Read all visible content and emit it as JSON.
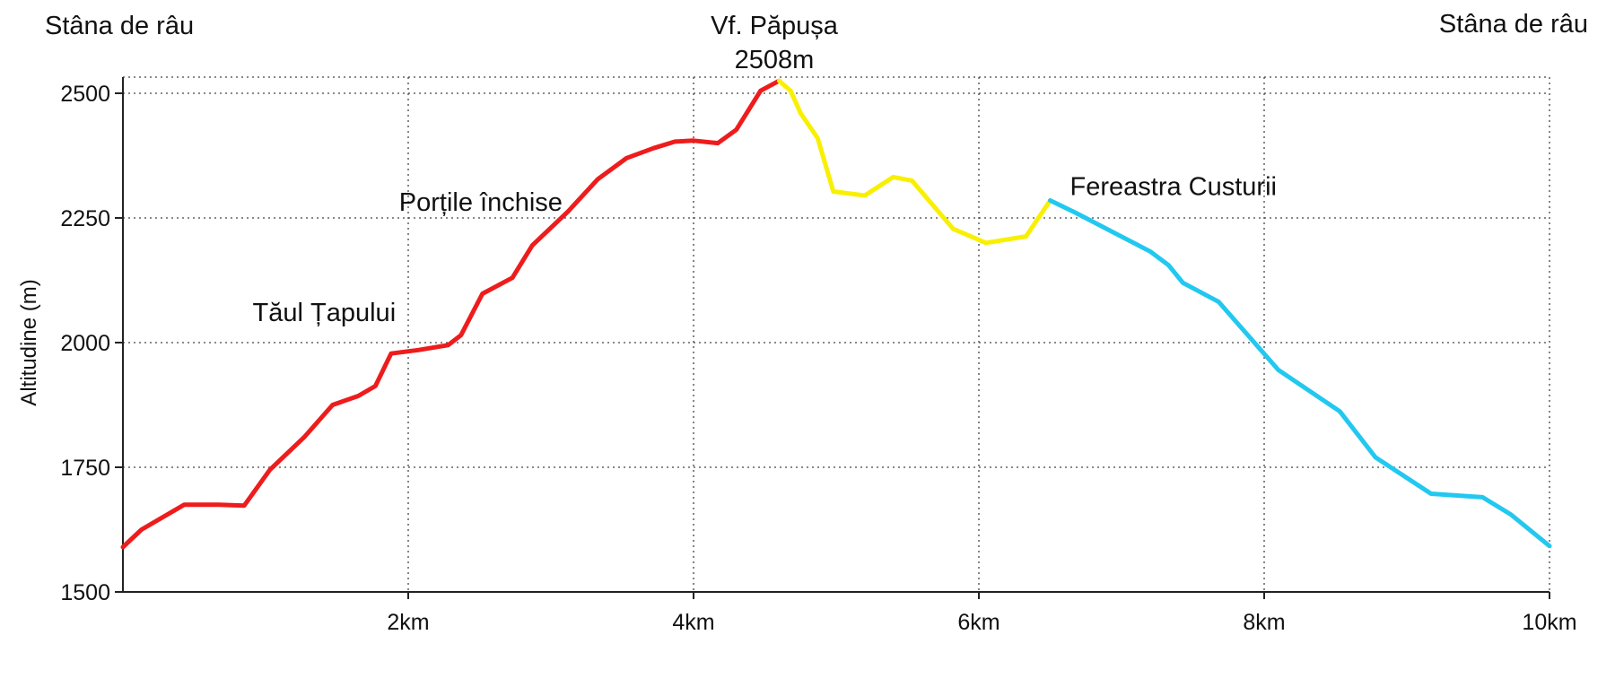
{
  "chart_data": {
    "type": "line",
    "title": "",
    "xlabel": "",
    "ylabel": "Altitudine (m)",
    "xlim": [
      0,
      10
    ],
    "ylim": [
      1500,
      2550
    ],
    "x_unit": "km",
    "x_ticks": [
      2,
      4,
      6,
      8,
      10
    ],
    "x_tick_labels": [
      "2km",
      "4km",
      "6km",
      "8km",
      "10km"
    ],
    "y_ticks": [
      1500,
      1750,
      2000,
      2250,
      2500
    ],
    "y_tick_labels": [
      "1500",
      "1750",
      "2000",
      "2250",
      "2500"
    ],
    "grid": true,
    "top_labels": {
      "start": "Stâna de râu",
      "peak_name": "Vf. Păpușa",
      "peak_alt": "2508m",
      "end": "Stâna de râu"
    },
    "annotations": [
      {
        "text": "Tăul Țapului",
        "x": 1.85,
        "y": 1980
      },
      {
        "text": "Porțile închise",
        "x": 3.05,
        "y": 2250
      },
      {
        "text": "Fereastra Custurii",
        "x": 6.5,
        "y": 2285
      }
    ],
    "series": [
      {
        "color": "#ee1c1c",
        "x": [
          0,
          0.13,
          0.43,
          0.67,
          0.85,
          1.03,
          1.27,
          1.47,
          1.65,
          1.77,
          1.88,
          2.07,
          2.28,
          2.37,
          2.52,
          2.73,
          2.87,
          3.12,
          3.33,
          3.53,
          3.72,
          3.87,
          4.0,
          4.17,
          4.3,
          4.47,
          4.6
        ],
        "y": [
          1590,
          1625,
          1675,
          1675,
          1673,
          1745,
          1810,
          1875,
          1893,
          1913,
          1978,
          1985,
          1995,
          2015,
          2098,
          2130,
          2195,
          2263,
          2328,
          2370,
          2390,
          2403,
          2405,
          2400,
          2427,
          2505,
          2525
        ]
      },
      {
        "color": "#f8f000",
        "x": [
          4.6,
          4.68,
          4.75,
          4.87,
          4.98,
          5.2,
          5.4,
          5.53,
          5.82,
          6.05,
          6.33,
          6.5
        ],
        "y": [
          2525,
          2505,
          2460,
          2410,
          2303,
          2295,
          2332,
          2325,
          2228,
          2200,
          2213,
          2285
        ]
      },
      {
        "color": "#22c8f0",
        "x": [
          6.5,
          6.68,
          7.2,
          7.33,
          7.43,
          7.68,
          8.1,
          8.53,
          8.78,
          9.17,
          9.53,
          9.73,
          10.0
        ],
        "y": [
          2285,
          2260,
          2183,
          2155,
          2120,
          2082,
          1945,
          1862,
          1770,
          1697,
          1690,
          1655,
          1592
        ]
      }
    ]
  }
}
